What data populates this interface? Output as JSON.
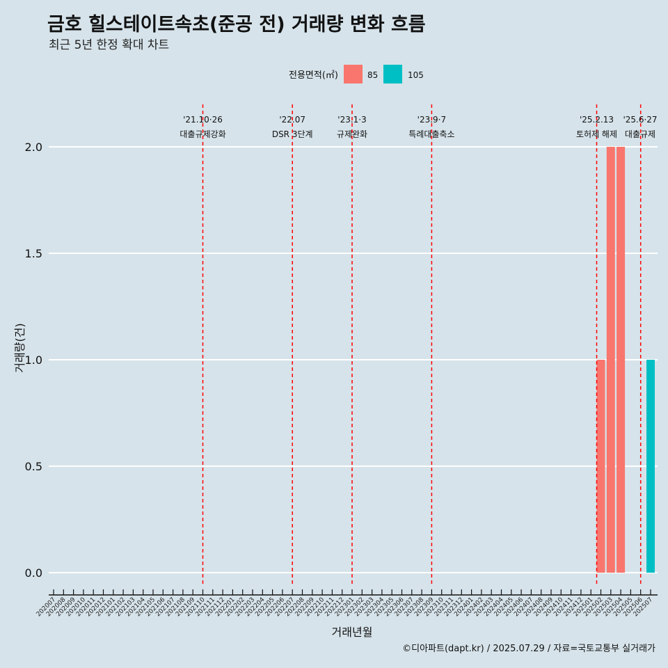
{
  "title": "금호 힐스테이트속초(준공 전) 거래량 변화 흐름",
  "subtitle": "최근 5년 한정 확대 차트",
  "caption": "©디아파트(dapt.kr) / 2025.07.29 / 자료=국토교통부 실거래가",
  "colors": {
    "background": "#d6e3ea",
    "series_85": "#f8766d",
    "series_105": "#00bfc4",
    "event_line": "#ff0000",
    "grid": "#ffffff"
  },
  "chart_data": {
    "type": "bar",
    "xlabel": "거래년월",
    "ylabel": "거래량(건)",
    "ylim": [
      0,
      2.0
    ],
    "yticks": [
      "0.0",
      "0.5",
      "1.0",
      "1.5",
      "2.0"
    ],
    "grid": true,
    "legend": {
      "title": "전용면적(㎡)",
      "placement": "top"
    },
    "categories": [
      "202007",
      "202008",
      "202009",
      "202010",
      "202011",
      "202012",
      "202101",
      "202102",
      "202103",
      "202104",
      "202105",
      "202106",
      "202107",
      "202108",
      "202109",
      "202110",
      "202111",
      "202112",
      "202201",
      "202202",
      "202203",
      "202204",
      "202205",
      "202206",
      "202207",
      "202208",
      "202209",
      "202210",
      "202211",
      "202212",
      "202301",
      "202302",
      "202303",
      "202304",
      "202305",
      "202306",
      "202307",
      "202308",
      "202309",
      "202310",
      "202311",
      "202312",
      "202401",
      "202402",
      "202403",
      "202404",
      "202405",
      "202406",
      "202407",
      "202408",
      "202409",
      "202410",
      "202411",
      "202412",
      "202501",
      "202502",
      "202503",
      "202504",
      "202505",
      "202506",
      "202507"
    ],
    "series": [
      {
        "name": "85",
        "color": "#f8766d",
        "values": [
          0,
          0,
          0,
          0,
          0,
          0,
          0,
          0,
          0,
          0,
          0,
          0,
          0,
          0,
          0,
          0,
          0,
          0,
          0,
          0,
          0,
          0,
          0,
          0,
          0,
          0,
          0,
          0,
          0,
          0,
          0,
          0,
          0,
          0,
          0,
          0,
          0,
          0,
          0,
          0,
          0,
          0,
          0,
          0,
          0,
          0,
          0,
          0,
          0,
          0,
          0,
          0,
          0,
          0,
          0,
          1,
          2,
          2,
          0,
          0,
          0
        ]
      },
      {
        "name": "105",
        "color": "#00bfc4",
        "values": [
          0,
          0,
          0,
          0,
          0,
          0,
          0,
          0,
          0,
          0,
          0,
          0,
          0,
          0,
          0,
          0,
          0,
          0,
          0,
          0,
          0,
          0,
          0,
          0,
          0,
          0,
          0,
          0,
          0,
          0,
          0,
          0,
          0,
          0,
          0,
          0,
          0,
          0,
          0,
          0,
          0,
          0,
          0,
          0,
          0,
          0,
          0,
          0,
          0,
          0,
          0,
          0,
          0,
          0,
          0,
          0,
          0,
          0,
          0,
          0,
          1
        ]
      }
    ],
    "events": [
      {
        "x": "202110",
        "date": "'21.10·26",
        "label": "대출규제강화"
      },
      {
        "x": "202207",
        "date": "'22.07",
        "label": "DSR 3단계"
      },
      {
        "x": "202301",
        "date": "'23.1·3",
        "label": "규제완화"
      },
      {
        "x": "202309",
        "date": "'23.9·7",
        "label": "특례대출축소"
      },
      {
        "x": "202502",
        "date": "'25.2.13",
        "label": "토허제 해제"
      },
      {
        "x": "202506",
        "date": "'25.6·27",
        "label": "대출규제"
      }
    ]
  }
}
